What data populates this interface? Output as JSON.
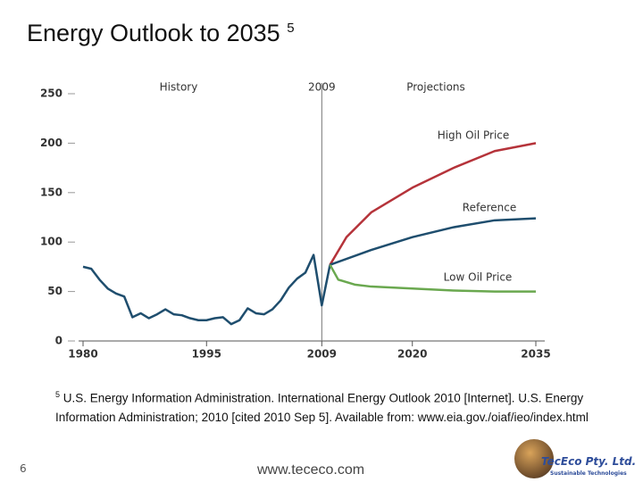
{
  "slide": {
    "title": "Energy Outlook to 2035",
    "title_note": "5",
    "footnote_marker": "5",
    "footnote": "U.S. Energy Information Administration. International Energy Outlook 2010 [Internet]. U.S. Energy Information Administration; 2010 [cited 2010 Sep 5]. Available from: www.eia.gov./oiaf/ieo/index.html",
    "page_number": "6",
    "website": "www.tececo.com",
    "logo": "TecEco Pty. Ltd.",
    "logo_tagline": "Sustainable Technologies"
  },
  "chart_data": {
    "type": "line",
    "annotations": [
      "History",
      "2009",
      "Projections"
    ],
    "divider_x": 2009,
    "xlim": [
      1980,
      2035
    ],
    "xticks": [
      1980,
      1995,
      2009,
      2020,
      2035
    ],
    "ylim": [
      0,
      250
    ],
    "yticks": [
      0,
      50,
      100,
      150,
      200,
      250
    ],
    "grid": false,
    "series": [
      {
        "color": "#1f4e6e",
        "x": [
          1980,
          1981,
          1982,
          1983,
          1984,
          1985,
          1986,
          1987,
          1988,
          1989,
          1990,
          1991,
          1992,
          1993,
          1994,
          1995,
          1996,
          1997,
          1998,
          1999,
          2000,
          2001,
          2002,
          2003,
          2004,
          2005,
          2006,
          2007,
          2008,
          2009,
          2010
        ],
        "values": [
          75,
          73,
          62,
          53,
          48,
          45,
          24,
          28,
          23,
          27,
          32,
          27,
          26,
          23,
          21,
          21,
          23,
          24,
          17,
          21,
          33,
          28,
          27,
          32,
          41,
          54,
          63,
          69,
          87,
          36,
          77
        ]
      },
      {
        "name": "High Oil Price",
        "color": "#b5333a",
        "x": [
          2010,
          2012,
          2015,
          2020,
          2025,
          2030,
          2035
        ],
        "values": [
          77,
          105,
          130,
          155,
          175,
          192,
          200
        ]
      },
      {
        "name": "Reference",
        "color": "#1f4e6e",
        "x": [
          2010,
          2015,
          2020,
          2025,
          2030,
          2035
        ],
        "values": [
          77,
          92,
          105,
          115,
          122,
          124
        ]
      },
      {
        "name": "Low Oil Price",
        "color": "#6aa84f",
        "x": [
          2010,
          2011,
          2013,
          2015,
          2020,
          2025,
          2030,
          2035
        ],
        "values": [
          77,
          62,
          57,
          55,
          53,
          51,
          50,
          50
        ]
      }
    ]
  }
}
